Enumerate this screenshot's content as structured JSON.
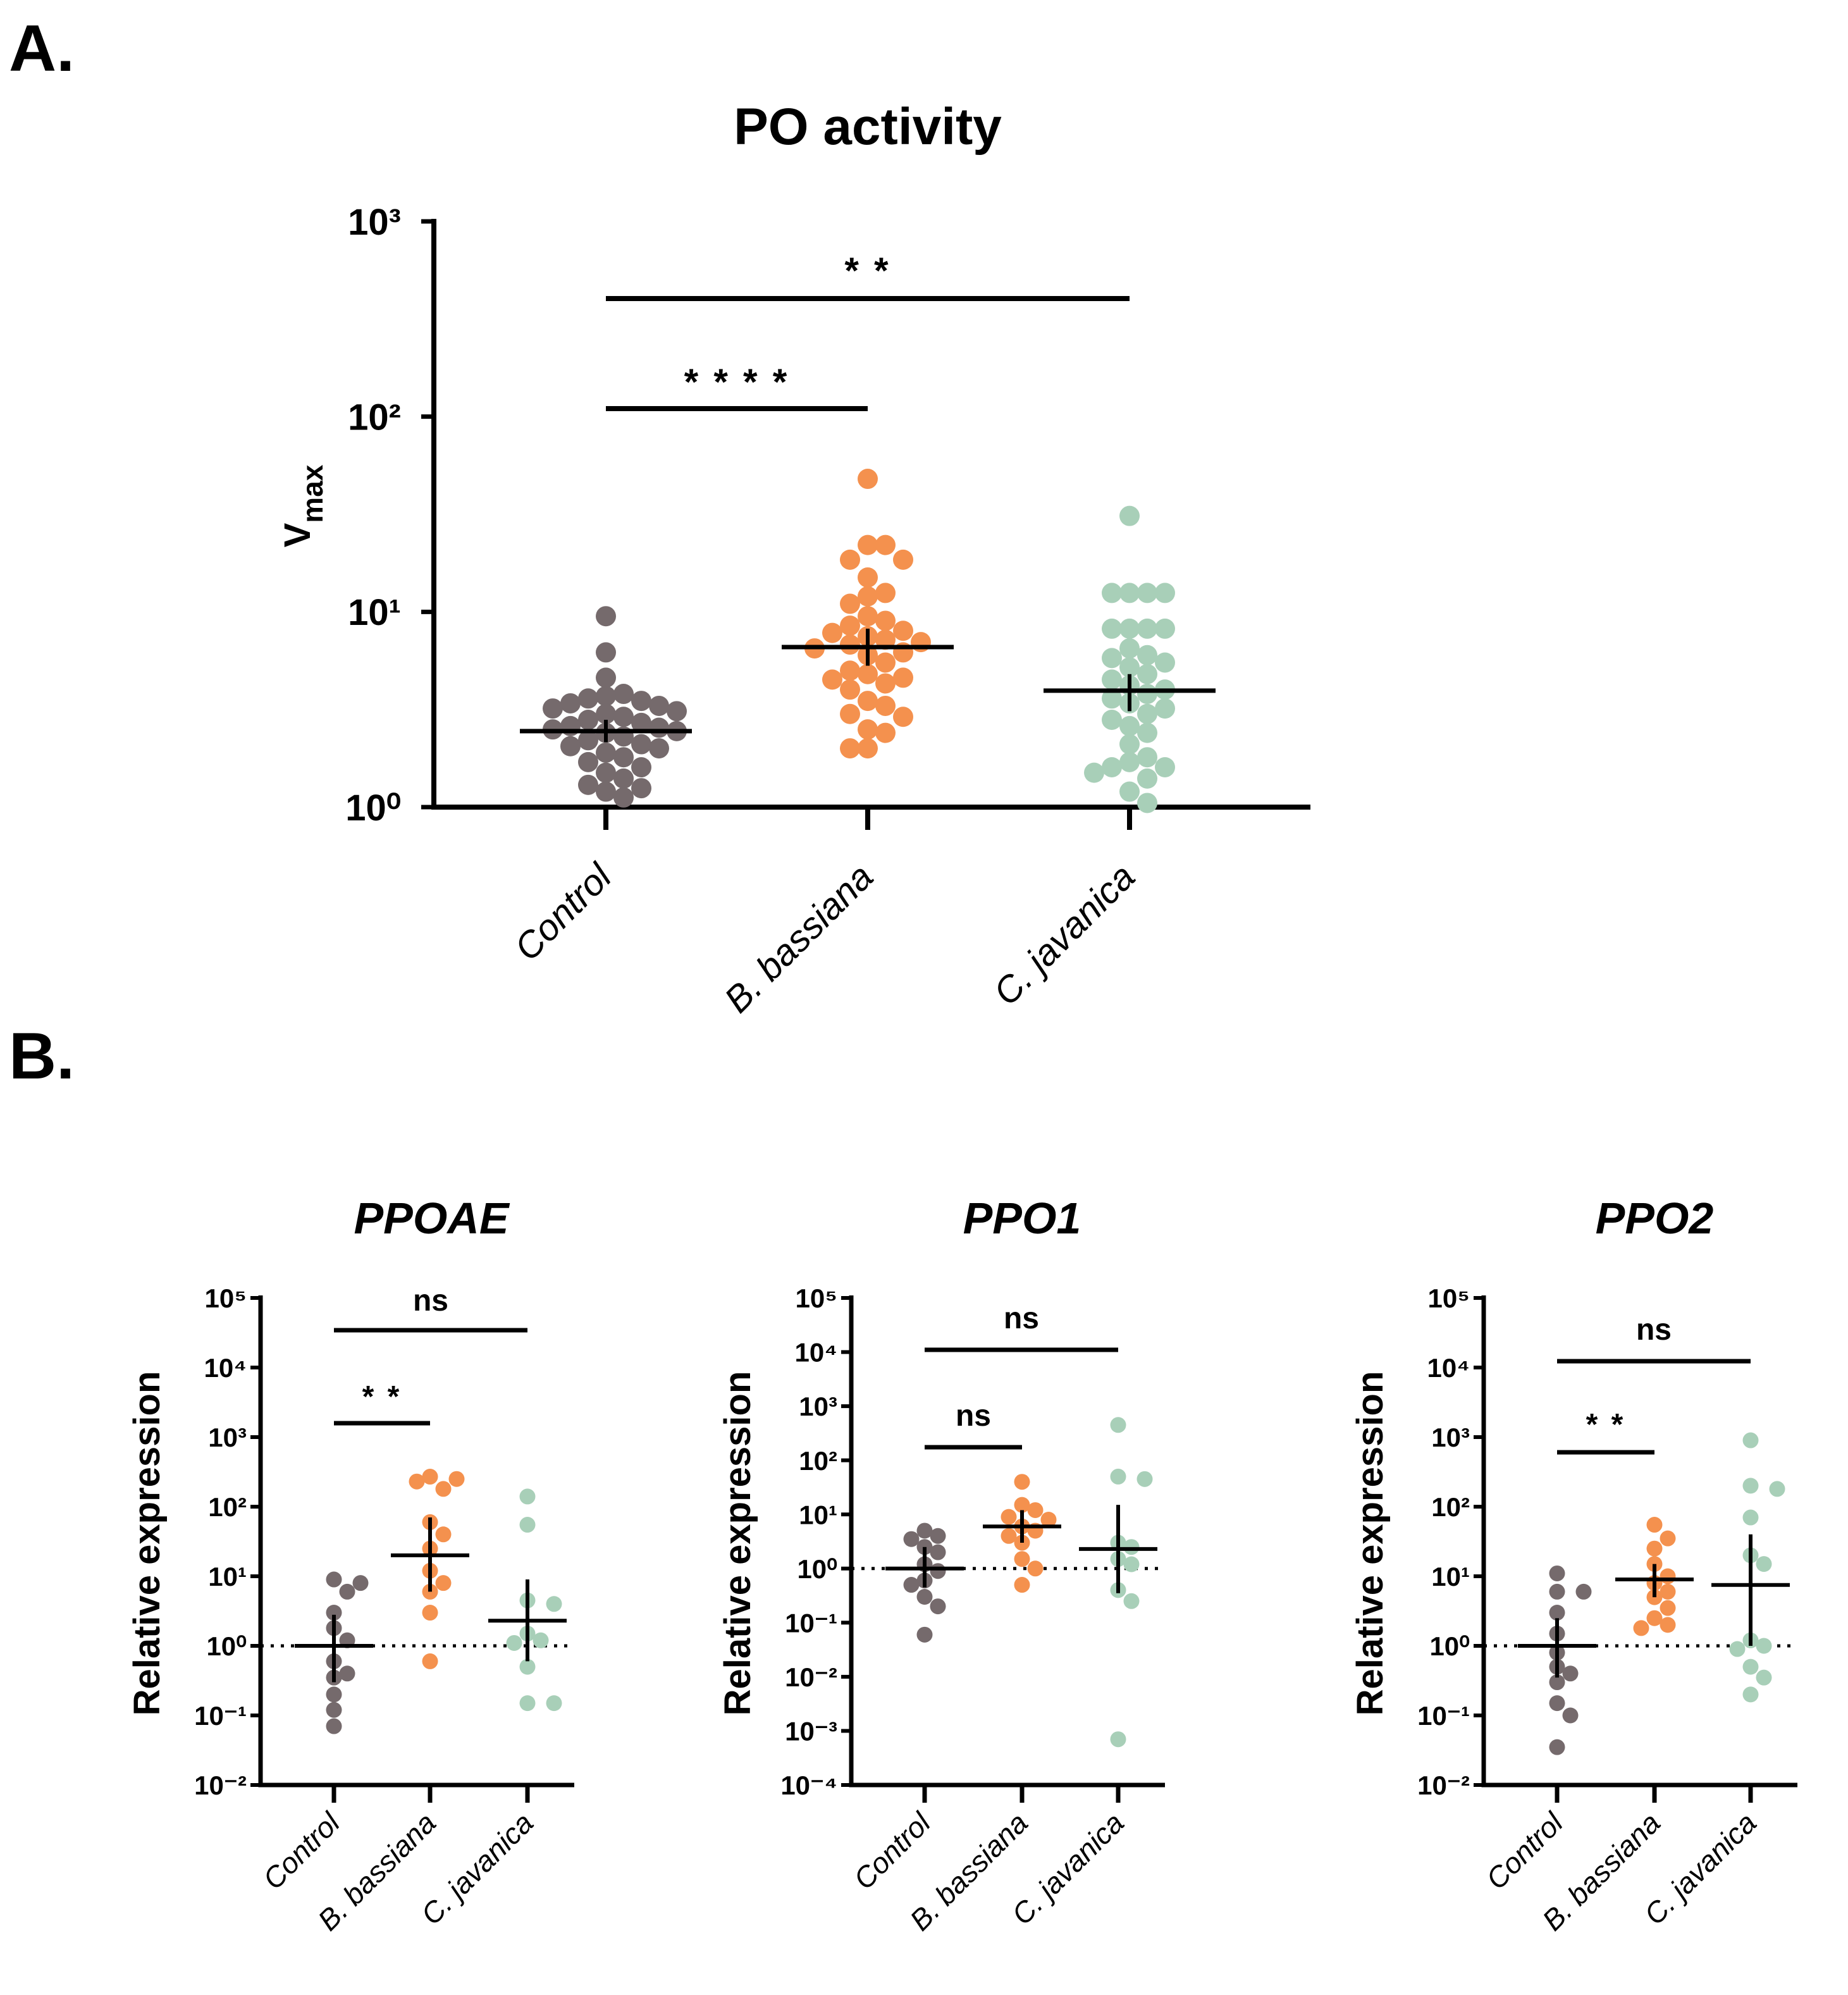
{
  "panel_labels": {
    "a": "A.",
    "b": "B."
  },
  "colors": {
    "control": "#756a6c",
    "b_bassiana": "#f4914e",
    "c_javanica": "#a8cfb8",
    "axis": "#000000"
  },
  "chart_data": [
    {
      "type": "scatter",
      "title": "PO activity",
      "ylabel": "V",
      "ylabel_sub": "max",
      "yscale": "log",
      "ylim": [
        1,
        1000
      ],
      "ytick_labels": [
        "10⁰",
        "10¹",
        "10²",
        "10³"
      ],
      "categories": [
        "Control",
        "B. bassiana",
        "C. javanica"
      ],
      "series": [
        {
          "category": "Control",
          "mean": 2.45,
          "err": [
            2.15,
            2.8
          ],
          "values": [
            9.5,
            6.2,
            4.6,
            3.8,
            3.7,
            3.6,
            3.5,
            3.4,
            3.3,
            3.2,
            3.1,
            3.0,
            2.9,
            2.8,
            2.7,
            2.6,
            2.55,
            2.5,
            2.45,
            2.4,
            2.3,
            2.2,
            2.1,
            2.05,
            2.0,
            1.9,
            1.8,
            1.7,
            1.6,
            1.5,
            1.4,
            1.3,
            1.25,
            1.2,
            1.12
          ]
        },
        {
          "category": "B. bassiana",
          "mean": 6.6,
          "err": [
            5.3,
            8.2
          ],
          "values": [
            48,
            22,
            22,
            18.5,
            18.5,
            15,
            12.5,
            12,
            11,
            9.5,
            9,
            8.5,
            8,
            7.8,
            7.5,
            7.2,
            7,
            6.8,
            6.5,
            6.2,
            6,
            5.5,
            5,
            4.8,
            4.6,
            4.5,
            4.3,
            4,
            3.5,
            3.3,
            3,
            2.9,
            2.5,
            2.4,
            2,
            2
          ]
        },
        {
          "category": "C. javanica",
          "mean": 3.95,
          "err": [
            3.1,
            4.8
          ],
          "values": [
            31,
            12.5,
            12.5,
            12.5,
            12.5,
            8.2,
            8.2,
            8.2,
            8.2,
            6.5,
            6,
            5.8,
            5.5,
            5.2,
            4.8,
            4.5,
            4.2,
            4,
            3.8,
            3.6,
            3.4,
            3.2,
            3.0,
            2.8,
            2.6,
            2.4,
            2.1,
            1.8,
            1.7,
            1.6,
            1.6,
            1.5,
            1.4,
            1.2,
            1.05
          ]
        }
      ],
      "significance": [
        {
          "from": "Control",
          "to": "B. bassiana",
          "label": "* * * *"
        },
        {
          "from": "Control",
          "to": "C. javanica",
          "label": "* *"
        }
      ]
    },
    {
      "type": "scatter",
      "title": "PPOAE",
      "ylabel": "Relative expression",
      "yscale": "log",
      "ylim": [
        0.01,
        100000
      ],
      "ytick_labels": [
        "10⁻²",
        "10⁻¹",
        "10⁰",
        "10¹",
        "10²",
        "10³",
        "10⁴",
        "10⁵"
      ],
      "reference_line": 1,
      "categories": [
        "Control",
        "B. bassiana",
        "C. javanica"
      ],
      "series": [
        {
          "category": "Control",
          "mean": 1.0,
          "err": [
            0.3,
            2.8
          ],
          "values": [
            9,
            8,
            6,
            3,
            1.8,
            1.2,
            0.6,
            0.4,
            0.35,
            0.2,
            0.12,
            0.07
          ]
        },
        {
          "category": "B. bassiana",
          "mean": 20,
          "err": [
            6,
            70
          ],
          "values": [
            270,
            250,
            230,
            180,
            60,
            40,
            25,
            12,
            8,
            6,
            3,
            0.6
          ]
        },
        {
          "category": "C. javanica",
          "mean": 2.3,
          "err": [
            0.6,
            9
          ],
          "values": [
            140,
            55,
            4.5,
            4,
            1.5,
            1.2,
            1.1,
            0.5,
            0.15,
            0.15
          ]
        }
      ],
      "significance": [
        {
          "from": "Control",
          "to": "B. bassiana",
          "label": "* *"
        },
        {
          "from": "Control",
          "to": "C. javanica",
          "label": "ns"
        }
      ]
    },
    {
      "type": "scatter",
      "title": "PPO1",
      "ylabel": "Relative expression",
      "yscale": "log",
      "ylim": [
        0.0001,
        100000
      ],
      "ytick_labels": [
        "10⁻⁴",
        "10⁻³",
        "10⁻²",
        "10⁻¹",
        "10⁰",
        "10¹",
        "10²",
        "10³",
        "10⁴",
        "10⁵"
      ],
      "reference_line": 1,
      "categories": [
        "Control",
        "B. bassiana",
        "C. javanica"
      ],
      "series": [
        {
          "category": "Control",
          "mean": 1.0,
          "err": [
            0.45,
            2.5
          ],
          "values": [
            5,
            4,
            3.5,
            2.5,
            2,
            1.2,
            0.9,
            0.6,
            0.5,
            0.3,
            0.2,
            0.06
          ]
        },
        {
          "category": "B. bassiana",
          "mean": 6,
          "err": [
            3,
            12
          ],
          "values": [
            40,
            15,
            12,
            9,
            8,
            6,
            5,
            4,
            3,
            1.5,
            1.0,
            0.5
          ]
        },
        {
          "category": "C. javanica",
          "mean": 2.3,
          "err": [
            0.35,
            15
          ],
          "values": [
            450,
            50,
            45,
            3,
            2.5,
            1.5,
            1.2,
            0.4,
            0.25,
            0.0007
          ]
        }
      ],
      "significance": [
        {
          "from": "Control",
          "to": "B. bassiana",
          "label": "ns"
        },
        {
          "from": "Control",
          "to": "C. javanica",
          "label": "ns"
        }
      ]
    },
    {
      "type": "scatter",
      "title": "PPO2",
      "ylabel": "Relative expression",
      "yscale": "log",
      "ylim": [
        0.01,
        100000
      ],
      "ytick_labels": [
        "10⁻²",
        "10⁻¹",
        "10⁰",
        "10¹",
        "10²",
        "10³",
        "10⁴",
        "10⁵"
      ],
      "reference_line": 1,
      "categories": [
        "Control",
        "B. bassiana",
        "C. javanica"
      ],
      "series": [
        {
          "category": "Control",
          "mean": 1.0,
          "err": [
            0.35,
            2.5
          ],
          "values": [
            11,
            6,
            6,
            3,
            1.5,
            0.8,
            0.5,
            0.4,
            0.3,
            0.15,
            0.1,
            0.035
          ]
        },
        {
          "category": "B. bassiana",
          "mean": 9,
          "err": [
            5,
            15
          ],
          "values": [
            55,
            35,
            25,
            15,
            10,
            8,
            6,
            5,
            3.5,
            2.5,
            2,
            1.8
          ]
        },
        {
          "category": "C. javanica",
          "mean": 7.5,
          "err": [
            1.0,
            40
          ],
          "values": [
            900,
            200,
            180,
            70,
            20,
            15,
            1.2,
            1.0,
            0.9,
            0.5,
            0.35,
            0.2
          ]
        }
      ],
      "significance": [
        {
          "from": "Control",
          "to": "B. bassiana",
          "label": "* *"
        },
        {
          "from": "Control",
          "to": "C. javanica",
          "label": "ns"
        }
      ]
    }
  ]
}
